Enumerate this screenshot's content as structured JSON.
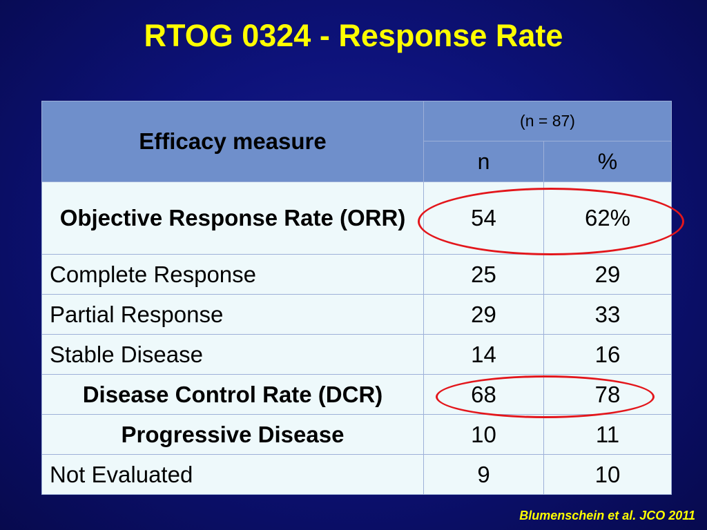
{
  "slide": {
    "title": "RTOG 0324 - Response Rate",
    "citation": "Blumenschein et al. JCO 2011"
  },
  "table": {
    "header": {
      "measure": "Efficacy measure",
      "group": "(n = 87)",
      "col_n": "n",
      "col_pct": "%"
    },
    "rows": [
      {
        "label": "Objective Response Rate (ORR)",
        "n": "54",
        "pct": "62%",
        "bold": true,
        "highlighted": true
      },
      {
        "label": "Complete Response",
        "n": "25",
        "pct": "29",
        "bold": false,
        "highlighted": false
      },
      {
        "label": "Partial Response",
        "n": "29",
        "pct": "33",
        "bold": false,
        "highlighted": false
      },
      {
        "label": "Stable Disease",
        "n": "14",
        "pct": "16",
        "bold": false,
        "highlighted": false
      },
      {
        "label": "Disease Control Rate (DCR)",
        "n": "68",
        "pct": "78",
        "bold": true,
        "highlighted": true
      },
      {
        "label": "Progressive Disease",
        "n": "10",
        "pct": "11",
        "bold": true,
        "highlighted": false
      },
      {
        "label": "Not Evaluated",
        "n": "9",
        "pct": "10",
        "bold": false,
        "highlighted": false
      }
    ]
  },
  "colors": {
    "title": "#ffff00",
    "header_fill": "#6f8fcb",
    "body_fill": "#eef9fb",
    "highlight_ring": "#e3161b"
  }
}
